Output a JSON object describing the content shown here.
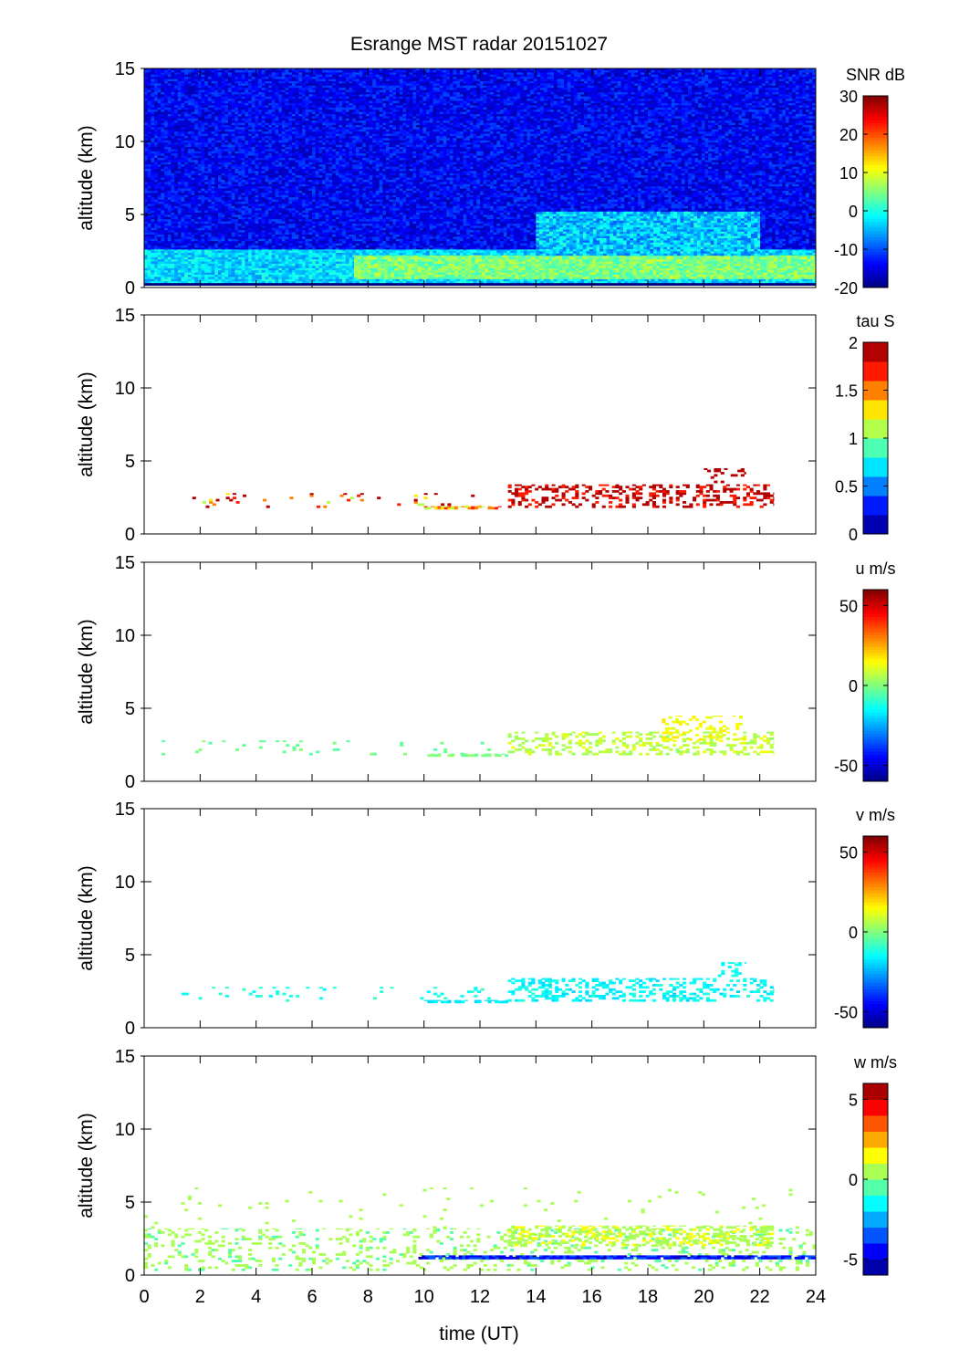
{
  "chart_data": {
    "type": "heatmap",
    "title": "Esrange MST radar 20151027",
    "xlabel": "time (UT)",
    "xlim": [
      0,
      24
    ],
    "xticks": [
      0,
      2,
      4,
      6,
      8,
      10,
      12,
      14,
      16,
      18,
      20,
      22,
      24
    ],
    "panels": [
      {
        "variable": "SNR",
        "ylabel": "altitude (km)",
        "ylim": [
          0,
          15
        ],
        "yticks": [
          0,
          5,
          10,
          15
        ],
        "colorbar": {
          "label": "SNR dB",
          "range": [
            -20,
            30
          ],
          "ticks": [
            -20,
            -10,
            0,
            10,
            20,
            30
          ],
          "levels": 0
        },
        "regions": [
          {
            "t0": 0,
            "t1": 24,
            "z0": 2.6,
            "z1": 15,
            "value": -14,
            "noise": 4
          },
          {
            "t0": 0,
            "t1": 24,
            "z0": 0.3,
            "z1": 2.6,
            "value": -3,
            "noise": 4
          },
          {
            "t0": 7.5,
            "t1": 24,
            "z0": 0.6,
            "z1": 2.2,
            "value": 5,
            "noise": 4
          },
          {
            "t0": 14,
            "t1": 22,
            "z0": 2.2,
            "z1": 5.2,
            "value": -4,
            "noise": 5
          },
          {
            "t0": 0,
            "t1": 24,
            "z0": 0.15,
            "z1": 0.3,
            "value": -20,
            "noise": 0
          }
        ]
      },
      {
        "variable": "tau",
        "ylabel": "altitude (km)",
        "ylim": [
          0,
          15
        ],
        "yticks": [
          0,
          5,
          10,
          15
        ],
        "colorbar": {
          "label": "tau S",
          "range": [
            0,
            2
          ],
          "ticks": [
            0,
            0.5,
            1,
            1.5,
            2
          ],
          "levels": 10
        },
        "regions": [
          {
            "t0": 13,
            "t1": 22.5,
            "z0": 1.8,
            "z1": 3.4,
            "value": 1.85,
            "density": 0.35,
            "noise": 0.2
          },
          {
            "t0": 1,
            "t1": 12.5,
            "z0": 1.8,
            "z1": 2.8,
            "value": 1.6,
            "density": 0.06,
            "noise": 0.6
          },
          {
            "t0": 10,
            "t1": 13,
            "z0": 1.7,
            "z1": 1.9,
            "value": 1.4,
            "density": 0.6,
            "noise": 0.3
          },
          {
            "t0": 20,
            "t1": 21.5,
            "z0": 3.5,
            "z1": 4.5,
            "value": 2.0,
            "density": 0.25,
            "noise": 0
          }
        ]
      },
      {
        "variable": "u",
        "ylabel": "altitude (km)",
        "ylim": [
          0,
          15
        ],
        "yticks": [
          0,
          5,
          10,
          15
        ],
        "colorbar": {
          "label": "u m/s",
          "range": [
            -60,
            60
          ],
          "ticks": [
            -50,
            0,
            50
          ],
          "levels": 0
        },
        "regions": [
          {
            "t0": 13,
            "t1": 22.5,
            "z0": 1.8,
            "z1": 3.4,
            "value": 8,
            "density": 0.35,
            "noise": 6
          },
          {
            "t0": 0.5,
            "t1": 12.5,
            "z0": 1.8,
            "z1": 2.8,
            "value": -2,
            "density": 0.06,
            "noise": 4
          },
          {
            "t0": 10,
            "t1": 13,
            "z0": 1.7,
            "z1": 1.9,
            "value": 0,
            "density": 0.6,
            "noise": 3
          },
          {
            "t0": 18.5,
            "t1": 21.5,
            "z0": 2.8,
            "z1": 4.5,
            "value": 14,
            "density": 0.25,
            "noise": 4
          }
        ]
      },
      {
        "variable": "v",
        "ylabel": "altitude (km)",
        "ylim": [
          0,
          15
        ],
        "yticks": [
          0,
          5,
          10,
          15
        ],
        "colorbar": {
          "label": "v m/s",
          "range": [
            -60,
            60
          ],
          "ticks": [
            -50,
            0,
            50
          ],
          "levels": 0
        },
        "regions": [
          {
            "t0": 13,
            "t1": 22.5,
            "z0": 1.8,
            "z1": 3.4,
            "value": -15,
            "density": 0.35,
            "noise": 5
          },
          {
            "t0": 0.5,
            "t1": 12.5,
            "z0": 1.8,
            "z1": 2.8,
            "value": -12,
            "density": 0.06,
            "noise": 4
          },
          {
            "t0": 10,
            "t1": 13,
            "z0": 1.7,
            "z1": 1.9,
            "value": -18,
            "density": 0.6,
            "noise": 3
          },
          {
            "t0": 20.5,
            "t1": 21.5,
            "z0": 3.5,
            "z1": 4.5,
            "value": -14,
            "density": 0.25,
            "noise": 3
          }
        ]
      },
      {
        "variable": "w",
        "ylabel": "altitude (km)",
        "ylim": [
          0,
          15
        ],
        "yticks": [
          0,
          5,
          10,
          15
        ],
        "colorbar": {
          "label": "w m/s",
          "range": [
            -6,
            6
          ],
          "ticks": [
            -5,
            0,
            5
          ],
          "levels": 12
        },
        "regions": [
          {
            "t0": 0,
            "t1": 24,
            "z0": 0.3,
            "z1": 3.2,
            "value": 0.3,
            "density": 0.18,
            "noise": 0.7
          },
          {
            "t0": 13,
            "t1": 22.5,
            "z0": 2.0,
            "z1": 3.4,
            "value": 0.8,
            "density": 0.4,
            "noise": 0.6
          },
          {
            "t0": 9.8,
            "t1": 24,
            "z0": 1.1,
            "z1": 1.35,
            "value": -4.2,
            "density": 0.9,
            "noise": 1.0
          },
          {
            "t0": 0,
            "t1": 24,
            "z0": 3.2,
            "z1": 6,
            "value": 0.5,
            "density": 0.02,
            "noise": 0.5
          }
        ]
      }
    ]
  }
}
